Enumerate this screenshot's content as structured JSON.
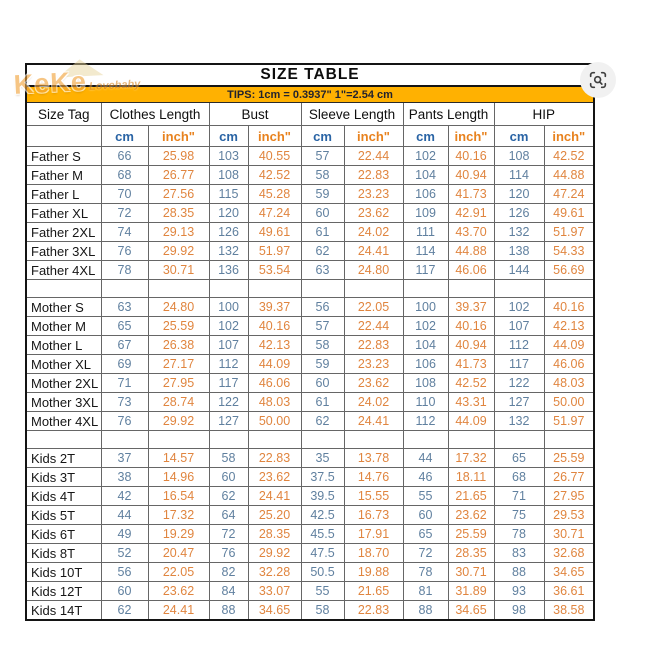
{
  "header": {
    "title": "SIZE TABLE",
    "tips": "TIPS: 1cm = 0.3937\"  1\"=2.54 cm"
  },
  "watermark": {
    "brand": "KeKe",
    "suffix": "Lovebaby"
  },
  "lens_icon": {
    "name": "image-search-lens"
  },
  "colors": {
    "tips_bar": "#FFB101",
    "cm_header": "#2A64A5",
    "inch_header": "#E8821E",
    "cm_value": "#60809F",
    "inch_value": "#E0853F",
    "grid_line": "#666666",
    "outer_border": "#141414"
  },
  "chart_data": {
    "type": "table",
    "title": "SIZE TABLE",
    "column_groups": [
      "Size Tag",
      "Clothes Length",
      "Bust",
      "Sleeve Length",
      "Pants Length",
      "HIP"
    ],
    "units": [
      "cm",
      "inch\""
    ],
    "sections": [
      {
        "name": "Father",
        "rows": [
          {
            "tag": "Father S",
            "values": [
              "66",
              "25.98",
              "103",
              "40.55",
              "57",
              "22.44",
              "102",
              "40.16",
              "108",
              "42.52"
            ]
          },
          {
            "tag": "Father M",
            "values": [
              "68",
              "26.77",
              "108",
              "42.52",
              "58",
              "22.83",
              "104",
              "40.94",
              "114",
              "44.88"
            ]
          },
          {
            "tag": "Father L",
            "values": [
              "70",
              "27.56",
              "115",
              "45.28",
              "59",
              "23.23",
              "106",
              "41.73",
              "120",
              "47.24"
            ]
          },
          {
            "tag": "Father XL",
            "values": [
              "72",
              "28.35",
              "120",
              "47.24",
              "60",
              "23.62",
              "109",
              "42.91",
              "126",
              "49.61"
            ]
          },
          {
            "tag": "Father 2XL",
            "values": [
              "74",
              "29.13",
              "126",
              "49.61",
              "61",
              "24.02",
              "111",
              "43.70",
              "132",
              "51.97"
            ]
          },
          {
            "tag": "Father 3XL",
            "values": [
              "76",
              "29.92",
              "132",
              "51.97",
              "62",
              "24.41",
              "114",
              "44.88",
              "138",
              "54.33"
            ]
          },
          {
            "tag": "Father 4XL",
            "values": [
              "78",
              "30.71",
              "136",
              "53.54",
              "63",
              "24.80",
              "117",
              "46.06",
              "144",
              "56.69"
            ]
          }
        ]
      },
      {
        "name": "Mother",
        "rows": [
          {
            "tag": "Mother S",
            "values": [
              "63",
              "24.80",
              "100",
              "39.37",
              "56",
              "22.05",
              "100",
              "39.37",
              "102",
              "40.16"
            ]
          },
          {
            "tag": "Mother M",
            "values": [
              "65",
              "25.59",
              "102",
              "40.16",
              "57",
              "22.44",
              "102",
              "40.16",
              "107",
              "42.13"
            ]
          },
          {
            "tag": "Mother L",
            "values": [
              "67",
              "26.38",
              "107",
              "42.13",
              "58",
              "22.83",
              "104",
              "40.94",
              "112",
              "44.09"
            ]
          },
          {
            "tag": "Mother XL",
            "values": [
              "69",
              "27.17",
              "112",
              "44.09",
              "59",
              "23.23",
              "106",
              "41.73",
              "117",
              "46.06"
            ]
          },
          {
            "tag": "Mother 2XL",
            "values": [
              "71",
              "27.95",
              "117",
              "46.06",
              "60",
              "23.62",
              "108",
              "42.52",
              "122",
              "48.03"
            ]
          },
          {
            "tag": "Mother 3XL",
            "values": [
              "73",
              "28.74",
              "122",
              "48.03",
              "61",
              "24.02",
              "110",
              "43.31",
              "127",
              "50.00"
            ]
          },
          {
            "tag": "Mother 4XL",
            "values": [
              "76",
              "29.92",
              "127",
              "50.00",
              "62",
              "24.41",
              "112",
              "44.09",
              "132",
              "51.97"
            ]
          }
        ]
      },
      {
        "name": "Kids",
        "rows": [
          {
            "tag": "Kids 2T",
            "values": [
              "37",
              "14.57",
              "58",
              "22.83",
              "35",
              "13.78",
              "44",
              "17.32",
              "65",
              "25.59"
            ]
          },
          {
            "tag": "Kids 3T",
            "values": [
              "38",
              "14.96",
              "60",
              "23.62",
              "37.5",
              "14.76",
              "46",
              "18.11",
              "68",
              "26.77"
            ]
          },
          {
            "tag": "Kids 4T",
            "values": [
              "42",
              "16.54",
              "62",
              "24.41",
              "39.5",
              "15.55",
              "55",
              "21.65",
              "71",
              "27.95"
            ]
          },
          {
            "tag": "Kids 5T",
            "values": [
              "44",
              "17.32",
              "64",
              "25.20",
              "42.5",
              "16.73",
              "60",
              "23.62",
              "75",
              "29.53"
            ]
          },
          {
            "tag": "Kids 6T",
            "values": [
              "49",
              "19.29",
              "72",
              "28.35",
              "45.5",
              "17.91",
              "65",
              "25.59",
              "78",
              "30.71"
            ]
          },
          {
            "tag": "Kids 8T",
            "values": [
              "52",
              "20.47",
              "76",
              "29.92",
              "47.5",
              "18.70",
              "72",
              "28.35",
              "83",
              "32.68"
            ]
          },
          {
            "tag": "Kids 10T",
            "values": [
              "56",
              "22.05",
              "82",
              "32.28",
              "50.5",
              "19.88",
              "78",
              "30.71",
              "88",
              "34.65"
            ]
          },
          {
            "tag": "Kids 12T",
            "values": [
              "60",
              "23.62",
              "84",
              "33.07",
              "55",
              "21.65",
              "81",
              "31.89",
              "93",
              "36.61"
            ]
          },
          {
            "tag": "Kids 14T",
            "values": [
              "62",
              "24.41",
              "88",
              "34.65",
              "58",
              "22.83",
              "88",
              "34.65",
              "98",
              "38.58"
            ]
          }
        ]
      }
    ]
  }
}
